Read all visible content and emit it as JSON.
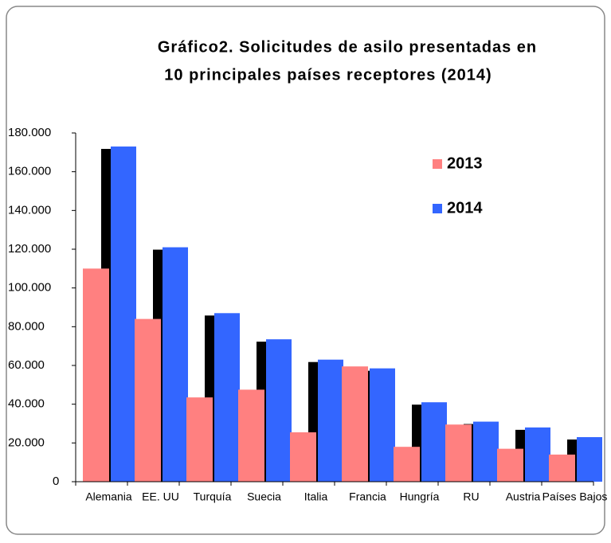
{
  "chart_data": {
    "type": "bar",
    "title": [
      "Gráfico2. Solicitudes de asilo presentadas en",
      "10 principales países receptores (2014)"
    ],
    "categories": [
      "Alemania",
      "EE. UU",
      "Turquía",
      "Suecia",
      "Italia",
      "Francia",
      "Hungría",
      "RU",
      "Austria",
      "Países Bajos"
    ],
    "series": [
      {
        "name": "2013",
        "color": "#ff8080",
        "values": [
          110000,
          84000,
          43500,
          47500,
          25500,
          59500,
          18000,
          29500,
          17000,
          14000
        ]
      },
      {
        "name": "2014",
        "color": "#3366ff",
        "values": [
          173000,
          121000,
          87000,
          73500,
          63000,
          58500,
          41000,
          31000,
          28000,
          23000
        ]
      }
    ],
    "ylim": [
      0,
      180000
    ],
    "yticks": [
      0,
      {
        "value": 20000,
        "label": "20.000"
      },
      {
        "value": 40000,
        "label": "40.000"
      },
      {
        "value": 60000,
        "label": "60.000"
      },
      {
        "value": 80000,
        "label": "80.000"
      },
      {
        "value": 100000,
        "label": "100.000"
      },
      {
        "value": 120000,
        "label": "120.000"
      },
      {
        "value": 140000,
        "label": "140.000"
      },
      {
        "value": 160000,
        "label": "160.000"
      },
      {
        "value": 180000,
        "label": "180.000"
      }
    ],
    "grid": false,
    "legend": "upper right"
  }
}
